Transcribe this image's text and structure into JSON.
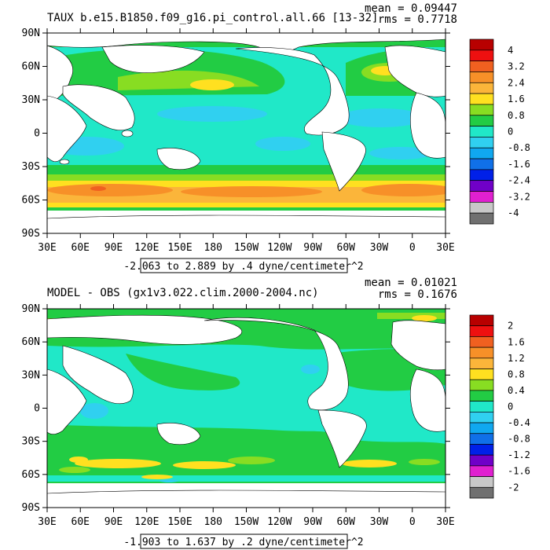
{
  "chart_data": [
    {
      "type": "heatmap",
      "title": "TAUX b.e15.B1850.f09_g16.pi_control.all.66 [13-32]",
      "stats": {
        "mean": "mean = 0.09447",
        "rms": "rms = 0.7718"
      },
      "range_label": "-2.063 to 2.889 by .4 dyne/centimeter^2",
      "y_ticks": [
        "90N",
        "60N",
        "30N",
        "0",
        "30S",
        "60S",
        "90S"
      ],
      "x_ticks": [
        "30E",
        "60E",
        "90E",
        "120E",
        "150E",
        "180",
        "150W",
        "120W",
        "90W",
        "60W",
        "30W",
        "0",
        "30E"
      ],
      "colorbar": {
        "labels": [
          "4",
          "3.2",
          "2.4",
          "1.6",
          "0.8",
          "0",
          "-0.8",
          "-1.6",
          "-2.4",
          "-3.2",
          "-4"
        ],
        "colors": [
          "#b80000",
          "#ee1010",
          "#f06020",
          "#f79028",
          "#fbb53a",
          "#ffe020",
          "#88dd22",
          "#22cc44",
          "#20e8c8",
          "#30d0f0",
          "#10a8f0",
          "#1070e8",
          "#0020e8",
          "#7000c8",
          "#e020d0",
          "#c8c8c8",
          "#707070"
        ]
      }
    },
    {
      "type": "heatmap",
      "title": "MODEL - OBS (gx1v3.022.clim.2000-2004.nc)",
      "stats": {
        "mean": "mean = 0.01021",
        "rms": "rms = 0.1676"
      },
      "range_label": "-1.903 to 1.637 by .2 dyne/centimeter^2",
      "y_ticks": [
        "90N",
        "60N",
        "30N",
        "0",
        "30S",
        "60S",
        "90S"
      ],
      "x_ticks": [
        "30E",
        "60E",
        "90E",
        "120E",
        "150E",
        "180",
        "150W",
        "120W",
        "90W",
        "60W",
        "30W",
        "0",
        "30E"
      ],
      "colorbar": {
        "labels": [
          "2",
          "1.6",
          "1.2",
          "0.8",
          "0.4",
          "0",
          "-0.4",
          "-0.8",
          "-1.2",
          "-1.6",
          "-2"
        ],
        "colors": [
          "#b80000",
          "#ee1010",
          "#f06020",
          "#f79028",
          "#fbb53a",
          "#ffe020",
          "#88dd22",
          "#22cc44",
          "#20e8c8",
          "#30d0f0",
          "#10a8f0",
          "#1070e8",
          "#0020e8",
          "#7000c8",
          "#e020d0",
          "#c8c8c8",
          "#707070"
        ]
      }
    }
  ]
}
